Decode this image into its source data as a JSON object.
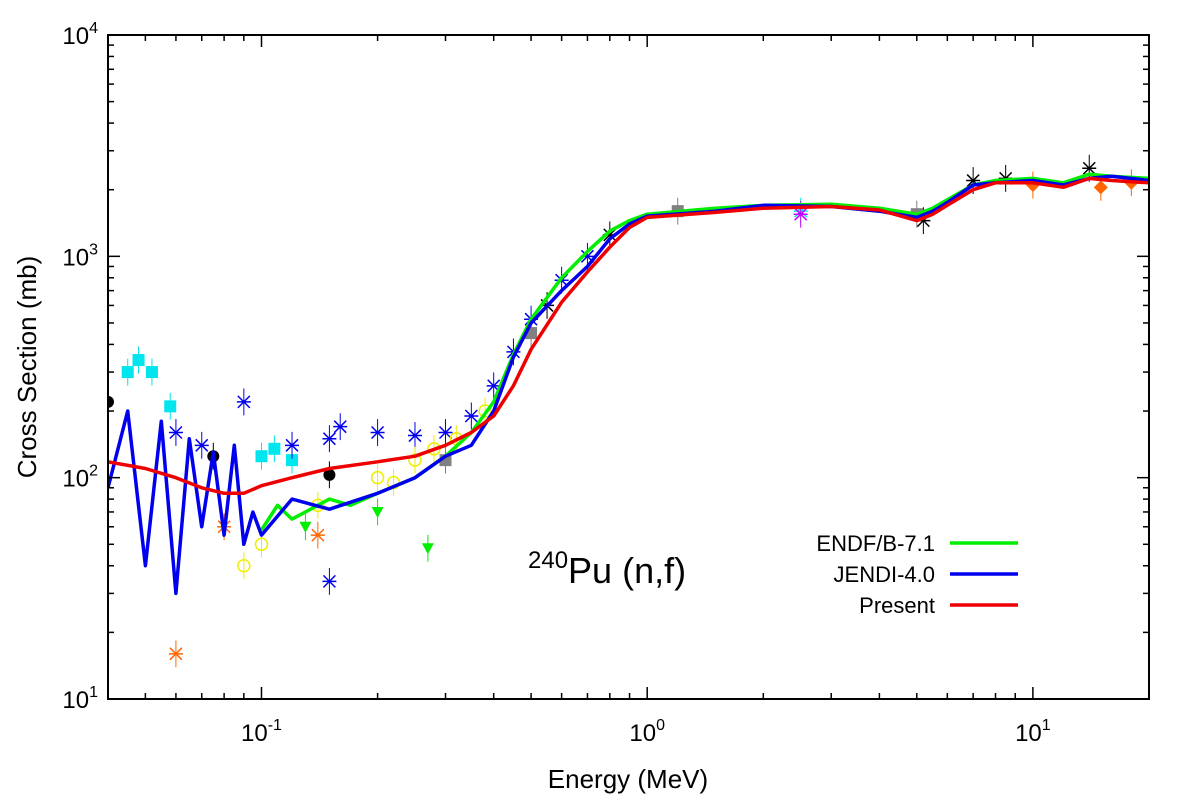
{
  "chart_data": {
    "type": "line",
    "title": "240Pu (n,f)",
    "reaction_label": {
      "superscript": "240",
      "text": "Pu (n,f)"
    },
    "xlabel": "Energy (MeV)",
    "ylabel": "Cross Section (mb)",
    "xscale": "log",
    "yscale": "log",
    "xlim": [
      0.04,
      20
    ],
    "ylim": [
      10,
      10000
    ],
    "x_ticks": [
      {
        "value": 0.1,
        "base": "10",
        "exp": "-1"
      },
      {
        "value": 1,
        "base": "10",
        "exp": "0"
      },
      {
        "value": 10,
        "base": "10",
        "exp": "1"
      }
    ],
    "y_ticks": [
      {
        "value": 10,
        "base": "10",
        "exp": "1"
      },
      {
        "value": 100,
        "base": "10",
        "exp": "2"
      },
      {
        "value": 1000,
        "base": "10",
        "exp": "3"
      },
      {
        "value": 10000,
        "base": "10",
        "exp": "4"
      }
    ],
    "legend_position": "bottom-right",
    "series": [
      {
        "name": "ENDF/B-7.1",
        "color": "#00ee00",
        "x": [
          0.1,
          0.11,
          0.12,
          0.13,
          0.15,
          0.17,
          0.2,
          0.25,
          0.3,
          0.35,
          0.4,
          0.45,
          0.5,
          0.6,
          0.7,
          0.8,
          0.9,
          1.0,
          1.5,
          2.0,
          3.0,
          4.0,
          5.0,
          5.5,
          6.0,
          7.0,
          8.0,
          10.0,
          12.0,
          14.0,
          16.0,
          20.0
        ],
        "values": [
          58,
          75,
          65,
          70,
          80,
          75,
          85,
          100,
          125,
          160,
          220,
          360,
          520,
          800,
          1050,
          1300,
          1450,
          1550,
          1650,
          1700,
          1720,
          1650,
          1550,
          1650,
          1800,
          2100,
          2200,
          2250,
          2150,
          2350,
          2300,
          2250
        ]
      },
      {
        "name": "JENDI-4.0",
        "color": "#0000ee",
        "x": [
          0.04,
          0.045,
          0.05,
          0.055,
          0.06,
          0.065,
          0.07,
          0.075,
          0.08,
          0.085,
          0.09,
          0.095,
          0.1,
          0.12,
          0.15,
          0.2,
          0.25,
          0.3,
          0.35,
          0.4,
          0.45,
          0.5,
          0.6,
          0.7,
          0.8,
          0.9,
          1.0,
          1.5,
          2.0,
          3.0,
          4.0,
          5.0,
          5.5,
          6.0,
          7.0,
          8.0,
          10.0,
          12.0,
          14.0,
          16.0,
          20.0
        ],
        "values": [
          90,
          200,
          40,
          180,
          30,
          150,
          60,
          130,
          55,
          140,
          50,
          70,
          55,
          80,
          72,
          85,
          100,
          125,
          140,
          200,
          350,
          500,
          700,
          900,
          1200,
          1400,
          1520,
          1600,
          1700,
          1680,
          1600,
          1500,
          1600,
          1750,
          2100,
          2150,
          2200,
          2100,
          2250,
          2300,
          2200
        ]
      },
      {
        "name": "Present",
        "color": "#ee0000",
        "x": [
          0.04,
          0.05,
          0.06,
          0.07,
          0.08,
          0.09,
          0.1,
          0.12,
          0.15,
          0.2,
          0.25,
          0.3,
          0.35,
          0.4,
          0.45,
          0.5,
          0.6,
          0.7,
          0.8,
          0.9,
          1.0,
          1.5,
          2.0,
          3.0,
          4.0,
          5.0,
          5.5,
          6.0,
          7.0,
          8.0,
          10.0,
          12.0,
          14.0,
          16.0,
          20.0
        ],
        "values": [
          118,
          110,
          100,
          90,
          85,
          85,
          92,
          100,
          110,
          118,
          125,
          140,
          160,
          190,
          260,
          380,
          620,
          850,
          1100,
          1350,
          1500,
          1580,
          1650,
          1680,
          1620,
          1450,
          1550,
          1700,
          2000,
          2150,
          2150,
          2050,
          2250,
          2200,
          2150
        ]
      }
    ],
    "experimental_points": [
      {
        "x": 0.04,
        "y": 220,
        "color": "#000000",
        "marker": "circle"
      },
      {
        "x": 0.075,
        "y": 125,
        "color": "#000000",
        "marker": "circle"
      },
      {
        "x": 0.15,
        "y": 103,
        "color": "#000000",
        "marker": "circle"
      },
      {
        "x": 0.045,
        "y": 300,
        "color": "#00e5ee",
        "marker": "square"
      },
      {
        "x": 0.048,
        "y": 340,
        "color": "#00e5ee",
        "marker": "square"
      },
      {
        "x": 0.052,
        "y": 300,
        "color": "#00e5ee",
        "marker": "square"
      },
      {
        "x": 0.058,
        "y": 210,
        "color": "#00e5ee",
        "marker": "square"
      },
      {
        "x": 0.1,
        "y": 125,
        "color": "#00e5ee",
        "marker": "square"
      },
      {
        "x": 0.108,
        "y": 135,
        "color": "#00e5ee",
        "marker": "square"
      },
      {
        "x": 0.12,
        "y": 120,
        "color": "#00e5ee",
        "marker": "square"
      },
      {
        "x": 0.06,
        "y": 160,
        "color": "#0000ee",
        "marker": "cross"
      },
      {
        "x": 0.07,
        "y": 140,
        "color": "#0000ee",
        "marker": "cross"
      },
      {
        "x": 0.09,
        "y": 220,
        "color": "#0000ee",
        "marker": "cross"
      },
      {
        "x": 0.12,
        "y": 140,
        "color": "#0000ee",
        "marker": "cross"
      },
      {
        "x": 0.15,
        "y": 150,
        "color": "#0000ee",
        "marker": "cross"
      },
      {
        "x": 0.16,
        "y": 170,
        "color": "#0000ee",
        "marker": "cross"
      },
      {
        "x": 0.2,
        "y": 160,
        "color": "#0000ee",
        "marker": "cross"
      },
      {
        "x": 0.25,
        "y": 155,
        "color": "#0000ee",
        "marker": "cross"
      },
      {
        "x": 0.3,
        "y": 160,
        "color": "#0000ee",
        "marker": "cross"
      },
      {
        "x": 0.35,
        "y": 190,
        "color": "#0000ee",
        "marker": "cross"
      },
      {
        "x": 0.4,
        "y": 260,
        "color": "#0000ee",
        "marker": "cross"
      },
      {
        "x": 0.45,
        "y": 370,
        "color": "#0000ee",
        "marker": "cross"
      },
      {
        "x": 0.5,
        "y": 520,
        "color": "#0000ee",
        "marker": "cross"
      },
      {
        "x": 0.6,
        "y": 780,
        "color": "#0000ee",
        "marker": "cross"
      },
      {
        "x": 0.7,
        "y": 1000,
        "color": "#0000ee",
        "marker": "cross"
      },
      {
        "x": 0.15,
        "y": 34,
        "color": "#0000ee",
        "marker": "cross"
      },
      {
        "x": 0.2,
        "y": 100,
        "color": "#eeee00",
        "marker": "circle-open"
      },
      {
        "x": 0.22,
        "y": 95,
        "color": "#eeee00",
        "marker": "circle-open"
      },
      {
        "x": 0.25,
        "y": 120,
        "color": "#eeee00",
        "marker": "circle-open"
      },
      {
        "x": 0.28,
        "y": 135,
        "color": "#eeee00",
        "marker": "circle-open"
      },
      {
        "x": 0.32,
        "y": 150,
        "color": "#eeee00",
        "marker": "circle-open"
      },
      {
        "x": 0.38,
        "y": 200,
        "color": "#eeee00",
        "marker": "circle-open"
      },
      {
        "x": 0.14,
        "y": 75,
        "color": "#eeee00",
        "marker": "circle-open"
      },
      {
        "x": 0.1,
        "y": 50,
        "color": "#eeee00",
        "marker": "circle-open"
      },
      {
        "x": 0.09,
        "y": 40,
        "color": "#eeee00",
        "marker": "circle-open"
      },
      {
        "x": 0.27,
        "y": 48,
        "color": "#00ee00",
        "marker": "triangle-down"
      },
      {
        "x": 0.13,
        "y": 60,
        "color": "#00ee00",
        "marker": "triangle-down"
      },
      {
        "x": 0.2,
        "y": 70,
        "color": "#00ee00",
        "marker": "triangle-down"
      },
      {
        "x": 0.3,
        "y": 120,
        "color": "#808080",
        "marker": "square"
      },
      {
        "x": 0.5,
        "y": 450,
        "color": "#808080",
        "marker": "square"
      },
      {
        "x": 1.2,
        "y": 1600,
        "color": "#808080",
        "marker": "square"
      },
      {
        "x": 5.0,
        "y": 1550,
        "color": "#808080",
        "marker": "square"
      },
      {
        "x": 15.0,
        "y": 2050,
        "color": "#ff6600",
        "marker": "diamond"
      },
      {
        "x": 10.0,
        "y": 2100,
        "color": "#ff6600",
        "marker": "diamond"
      },
      {
        "x": 18.0,
        "y": 2150,
        "color": "#ff6600",
        "marker": "diamond"
      },
      {
        "x": 0.06,
        "y": 16,
        "color": "#ff6600",
        "marker": "cross"
      },
      {
        "x": 0.08,
        "y": 60,
        "color": "#ff6600",
        "marker": "cross"
      },
      {
        "x": 0.14,
        "y": 55,
        "color": "#ff6600",
        "marker": "cross"
      },
      {
        "x": 2.5,
        "y": 1600,
        "color": "#00e5ee",
        "marker": "cross"
      },
      {
        "x": 2.5,
        "y": 1550,
        "color": "#cc00ff",
        "marker": "cross"
      },
      {
        "x": 7.0,
        "y": 2200,
        "color": "#000000",
        "marker": "cross"
      },
      {
        "x": 8.5,
        "y": 2250,
        "color": "#000000",
        "marker": "cross"
      },
      {
        "x": 14.0,
        "y": 2500,
        "color": "#000000",
        "marker": "cross"
      },
      {
        "x": 0.8,
        "y": 1250,
        "color": "#000000",
        "marker": "cross"
      },
      {
        "x": 0.55,
        "y": 600,
        "color": "#000000",
        "marker": "cross"
      },
      {
        "x": 5.2,
        "y": 1450,
        "color": "#000000",
        "marker": "cross"
      }
    ]
  }
}
